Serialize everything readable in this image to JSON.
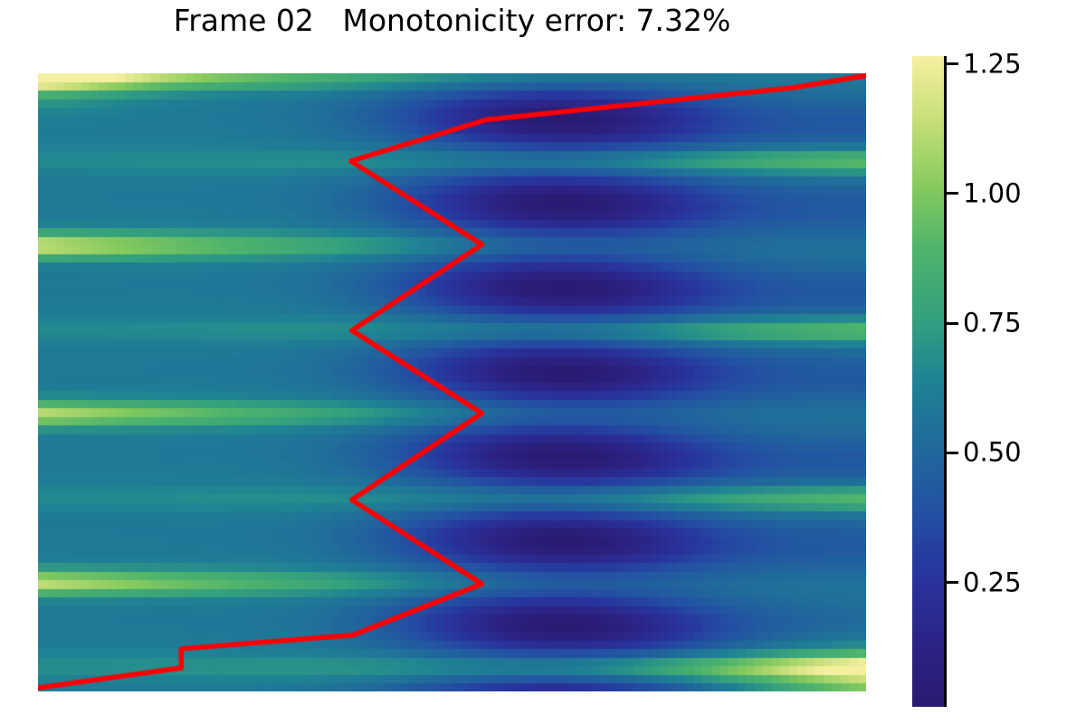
{
  "chart_data": {
    "type": "heatmap",
    "title": "Frame 02   Monotonicity error: 7.32%",
    "frame_label": "Frame 02",
    "monotonicity_error_pct": 7.32,
    "x_range": [
      0,
      1
    ],
    "y_range": [
      0,
      1
    ],
    "grid": false,
    "axes_ticks_visible": false,
    "background_color": "#ffffff",
    "colorbar": {
      "position": "right",
      "vmin": 0.01,
      "vmax": 1.265,
      "ticks": [
        1.25,
        1.0,
        0.75,
        0.5,
        0.25
      ],
      "tick_decimals": 2,
      "colormap_stops": [
        [
          0.0,
          "#291a70"
        ],
        [
          0.1,
          "#2c2487"
        ],
        [
          0.2,
          "#28349d"
        ],
        [
          0.3,
          "#2351a3"
        ],
        [
          0.4,
          "#20699b"
        ],
        [
          0.5,
          "#1f8294"
        ],
        [
          0.6,
          "#35a17d"
        ],
        [
          0.7,
          "#4eb36c"
        ],
        [
          0.8,
          "#86ca5e"
        ],
        [
          0.9,
          "#c6de78"
        ],
        [
          1.0,
          "#f5f0a0"
        ]
      ]
    },
    "heatmap_model": {
      "comment": "u(x,y) on unit square (y down): base + bright horizontal ridges (even k bright at left, odd k bright at right) minus dark wells between ridges (deepest near x=0.63) plus corner glows; rendered on a coarse quantized mesh like pcolormesh",
      "base": 0.62,
      "n_cols": 96,
      "n_rows": 72,
      "stripe_spacing": 0.13635,
      "stripe_phase": 0.0055,
      "stripe_sigma": 0.0145,
      "stripe_count": 8,
      "stripe_amps": [
        1.0,
        1.0,
        0.9,
        1.0,
        0.82,
        0.95,
        0.85,
        1.3
      ],
      "amp_left": {
        "a0": 0.63,
        "p": 2.2
      },
      "amp_right": {
        "c0": 0.06,
        "c1": 0.32,
        "p": 2.0
      },
      "well_phase": 0.0737,
      "well_sigma": 0.038,
      "well_tilt": 0.02,
      "well_count": 8,
      "well_x": {
        "c0": 0.03,
        "g1": [
          0.56,
          0.63,
          0.19
        ],
        "g2": [
          0.16,
          1.05,
          0.25
        ]
      },
      "glows": [
        [
          0.3,
          -0.02,
          0.14,
          0.0,
          0.05
        ],
        [
          0.55,
          1.06,
          0.2,
          1.02,
          0.1
        ]
      ],
      "clip": [
        0.01,
        1.265
      ]
    },
    "red_curve": {
      "color": "#ff0000",
      "linewidth": 5.5,
      "points": [
        [
          0.0,
          0.994
        ],
        [
          0.173,
          0.962
        ],
        [
          0.173,
          0.931
        ],
        [
          0.38,
          0.909
        ],
        [
          0.536,
          0.826
        ],
        [
          0.379,
          0.69
        ],
        [
          0.536,
          0.55
        ],
        [
          0.379,
          0.416
        ],
        [
          0.536,
          0.277
        ],
        [
          0.378,
          0.142
        ],
        [
          0.542,
          0.075
        ],
        [
          0.913,
          0.023
        ],
        [
          0.998,
          0.004
        ]
      ]
    }
  }
}
